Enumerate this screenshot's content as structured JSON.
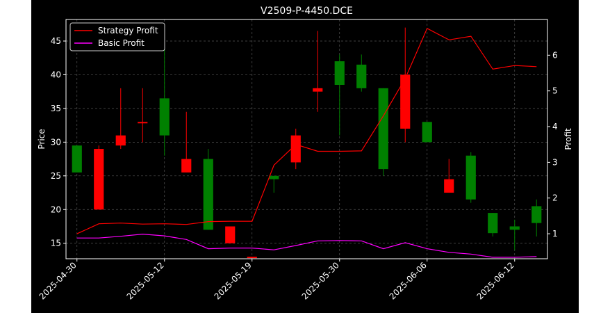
{
  "chart_data": {
    "type": "candlestick",
    "title": "V2509-P-4450.DCE",
    "ylabel": "Price",
    "ylabel_right": "Profit",
    "xlabel": "",
    "x_tick_labels": [
      "2025-04-30",
      "2025-05-12",
      "2025-05-19",
      "2025-05-30",
      "2025-06-06",
      "2025-06-12"
    ],
    "x_tick_index": [
      0,
      4,
      8,
      12,
      16,
      20
    ],
    "ylim": [
      12.7,
      48.2
    ],
    "yticks": [
      15,
      20,
      25,
      30,
      35,
      40,
      45
    ],
    "ylim_right": [
      0.3,
      7.0
    ],
    "yticks_right": [
      1,
      2,
      3,
      4,
      5,
      6
    ],
    "grid": true,
    "legend_position": "top-left",
    "colors": {
      "background": "#000000",
      "figure": "#ffffff",
      "up": "#008000",
      "down": "#ff0000",
      "strategy": "#ff0000",
      "basic": "#ff00ff",
      "text": "#ffffff",
      "grid": "#555555"
    },
    "candles": [
      {
        "open": 29.5,
        "close": 25.5,
        "high": 29.5,
        "low": 25.5
      },
      {
        "open": 20.0,
        "close": 29.0,
        "high": 29.5,
        "low": 20.0
      },
      {
        "open": 29.5,
        "close": 31.0,
        "high": 38.0,
        "low": 29.0
      },
      {
        "open": 33.0,
        "close": 33.0,
        "high": 38.0,
        "low": 30.0
      },
      {
        "open": 36.5,
        "close": 31.0,
        "high": 45.0,
        "low": 28.0
      },
      {
        "open": 25.5,
        "close": 27.5,
        "high": 34.5,
        "low": 25.5
      },
      {
        "open": 27.5,
        "close": 17.0,
        "high": 29.0,
        "low": 17.0
      },
      {
        "open": 15.0,
        "close": 17.5,
        "high": 17.5,
        "low": 15.0
      },
      {
        "open": 13.0,
        "close": 13.0,
        "high": 13.0,
        "low": 13.0
      },
      {
        "open": 25.0,
        "close": 24.5,
        "high": 25.0,
        "low": 22.5
      },
      {
        "open": 27.0,
        "close": 31.0,
        "high": 32.0,
        "low": 26.0
      },
      {
        "open": 37.5,
        "close": 38.0,
        "high": 46.5,
        "low": 34.5
      },
      {
        "open": 42.0,
        "close": 38.5,
        "high": 43.0,
        "low": 31.0
      },
      {
        "open": 41.5,
        "close": 38.0,
        "high": 43.0,
        "low": 37.5
      },
      {
        "open": 38.0,
        "close": 26.0,
        "high": 38.0,
        "low": 25.0
      },
      {
        "open": 32.0,
        "close": 40.0,
        "high": 47.0,
        "low": 30.0
      },
      {
        "open": 33.0,
        "close": 30.0,
        "high": 33.0,
        "low": 30.0
      },
      {
        "open": 22.5,
        "close": 24.5,
        "high": 27.5,
        "low": 22.5
      },
      {
        "open": 28.0,
        "close": 21.5,
        "high": 28.5,
        "low": 21.0
      },
      {
        "open": 19.5,
        "close": 16.5,
        "high": 19.5,
        "low": 16.0
      },
      {
        "open": 17.5,
        "close": 17.0,
        "high": 18.5,
        "low": 14.0
      },
      {
        "open": 20.5,
        "close": 18.0,
        "high": 21.5,
        "low": 16.0
      }
    ],
    "series": [
      {
        "name": "Strategy Profit",
        "axis": "right",
        "values": [
          1.0,
          1.28,
          1.3,
          1.27,
          1.28,
          1.26,
          1.34,
          1.35,
          1.35,
          2.92,
          3.5,
          3.31,
          3.31,
          3.32,
          4.3,
          5.35,
          6.75,
          6.43,
          6.53,
          5.61,
          5.71,
          5.68
        ]
      },
      {
        "name": "Basic Profit",
        "axis": "right",
        "values": [
          0.88,
          0.88,
          0.93,
          0.99,
          0.94,
          0.84,
          0.58,
          0.6,
          0.6,
          0.55,
          0.67,
          0.8,
          0.81,
          0.8,
          0.58,
          0.75,
          0.58,
          0.48,
          0.43,
          0.34,
          0.34,
          0.36
        ]
      }
    ]
  }
}
